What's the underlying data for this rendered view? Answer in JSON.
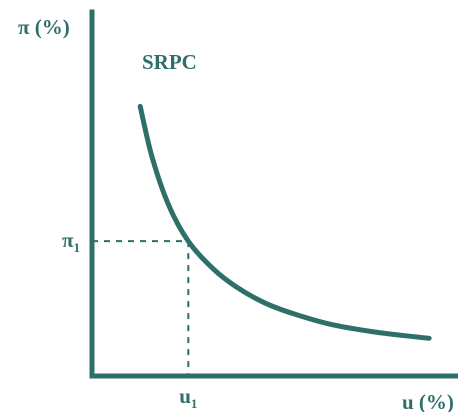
{
  "chart_data": {
    "type": "line",
    "title": "",
    "xlabel": "u (%)",
    "ylabel": "π (%)",
    "grid": false,
    "legend": "none",
    "series": [
      {
        "name": "SRPC",
        "x": [
          1.0,
          1.25,
          1.6,
          2.0,
          2.5,
          3.0,
          3.6,
          4.2,
          5.0,
          6.0,
          7.0
        ],
        "y": [
          10.0,
          8.1,
          6.3,
          5.0,
          4.0,
          3.3,
          2.7,
          2.3,
          1.9,
          1.6,
          1.4
        ]
      }
    ],
    "annotations": [
      {
        "label_main": "π",
        "label_sub": "1",
        "axis": "y",
        "value": 5.0
      },
      {
        "label_main": "u",
        "label_sub": "1",
        "axis": "x",
        "value": 2.0
      }
    ],
    "xlim": [
      0,
      7.6
    ],
    "ylim": [
      0,
      13.5
    ],
    "colors": {
      "axis": "#2f6f69",
      "curve": "#2f6f69",
      "text": "#2f6f69",
      "dashed": "#2f6f69"
    }
  }
}
